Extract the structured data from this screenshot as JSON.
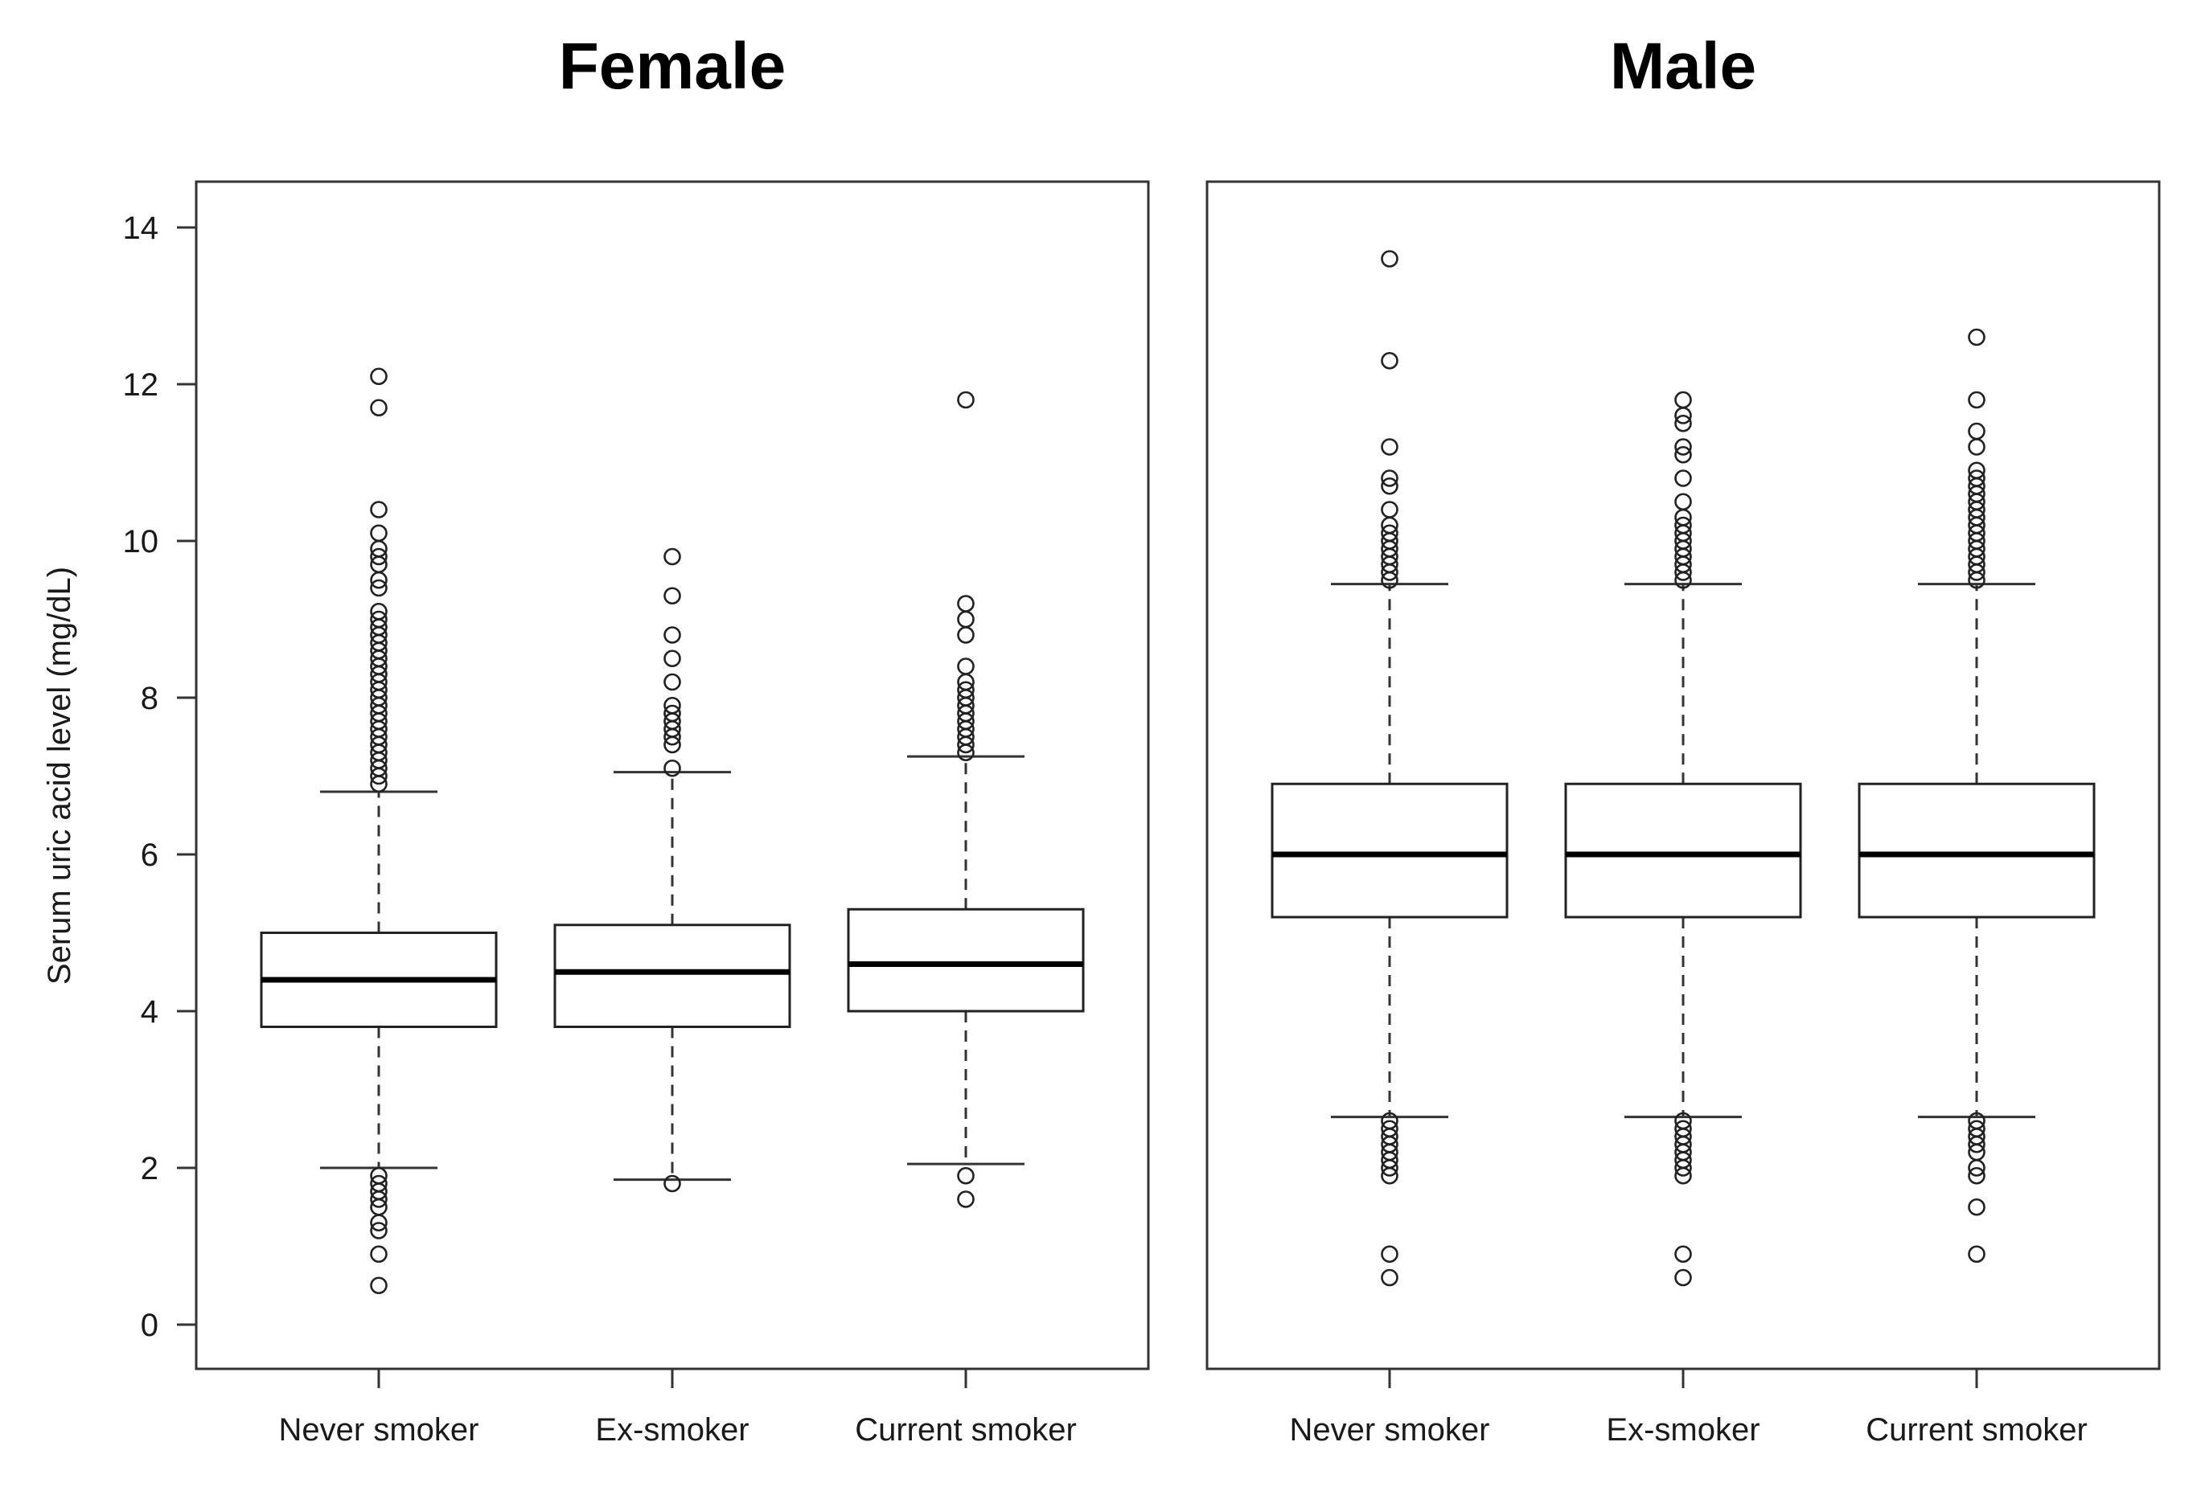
{
  "chart_data": [
    {
      "type": "boxplot",
      "title": "Female",
      "xlabel": "",
      "ylabel": "Serum uric acid level (mg/dL)",
      "ylim": [
        -0.55,
        14.6
      ],
      "yticks": [
        0,
        2,
        4,
        6,
        8,
        10,
        12,
        14
      ],
      "categories": [
        "Never smoker",
        "Ex-smoker",
        "Current smoker"
      ],
      "boxes": [
        {
          "category": "Never smoker",
          "whisker_low": 2.0,
          "q1": 3.8,
          "median": 4.4,
          "q3": 5.0,
          "whisker_high": 6.8,
          "outliers": [
            12.1,
            11.7,
            10.4,
            10.1,
            9.9,
            9.8,
            9.7,
            9.5,
            9.4,
            9.1,
            9.0,
            8.9,
            8.8,
            8.7,
            8.6,
            8.5,
            8.4,
            8.3,
            8.2,
            8.1,
            8.0,
            7.9,
            7.8,
            7.7,
            7.6,
            7.5,
            7.4,
            7.3,
            7.2,
            7.1,
            7.0,
            6.9,
            1.9,
            1.8,
            1.7,
            1.6,
            1.5,
            1.3,
            1.2,
            0.9,
            0.5
          ]
        },
        {
          "category": "Ex-smoker",
          "whisker_low": 1.85,
          "q1": 3.8,
          "median": 4.5,
          "q3": 5.1,
          "whisker_high": 7.05,
          "outliers": [
            9.8,
            9.3,
            8.8,
            8.5,
            8.2,
            7.9,
            7.8,
            7.7,
            7.6,
            7.5,
            7.4,
            7.1,
            1.8
          ]
        },
        {
          "category": "Current smoker",
          "whisker_low": 2.05,
          "q1": 4.0,
          "median": 4.6,
          "q3": 5.3,
          "whisker_high": 7.25,
          "outliers": [
            11.8,
            9.2,
            9.0,
            8.8,
            8.4,
            8.2,
            8.1,
            8.0,
            7.9,
            7.8,
            7.7,
            7.6,
            7.5,
            7.4,
            7.3,
            1.9,
            1.6
          ]
        }
      ]
    },
    {
      "type": "boxplot",
      "title": "Male",
      "xlabel": "",
      "ylabel": "",
      "ylim": [
        -0.55,
        14.6
      ],
      "categories": [
        "Never smoker",
        "Ex-smoker",
        "Current smoker"
      ],
      "boxes": [
        {
          "category": "Never smoker",
          "whisker_low": 2.65,
          "q1": 5.2,
          "median": 6.0,
          "q3": 6.9,
          "whisker_high": 9.45,
          "outliers": [
            13.6,
            12.3,
            11.2,
            10.8,
            10.7,
            10.4,
            10.2,
            10.1,
            10.0,
            9.9,
            9.8,
            9.7,
            9.6,
            9.5,
            2.6,
            2.5,
            2.4,
            2.3,
            2.2,
            2.1,
            2.0,
            1.9,
            0.9,
            0.6
          ]
        },
        {
          "category": "Ex-smoker",
          "whisker_low": 2.65,
          "q1": 5.2,
          "median": 6.0,
          "q3": 6.9,
          "whisker_high": 9.45,
          "outliers": [
            11.8,
            11.6,
            11.5,
            11.2,
            11.1,
            10.8,
            10.5,
            10.3,
            10.2,
            10.1,
            10.0,
            9.9,
            9.8,
            9.7,
            9.6,
            9.5,
            2.6,
            2.5,
            2.4,
            2.3,
            2.2,
            2.1,
            2.0,
            1.9,
            0.9,
            0.6
          ]
        },
        {
          "category": "Current smoker",
          "whisker_low": 2.65,
          "q1": 5.2,
          "median": 6.0,
          "q3": 6.9,
          "whisker_high": 9.45,
          "outliers": [
            12.6,
            11.8,
            11.4,
            11.2,
            10.9,
            10.8,
            10.7,
            10.6,
            10.5,
            10.4,
            10.3,
            10.2,
            10.1,
            10.0,
            9.9,
            9.8,
            9.7,
            9.6,
            9.5,
            2.6,
            2.5,
            2.4,
            2.3,
            2.2,
            2.0,
            1.9,
            1.5,
            0.9
          ]
        }
      ]
    }
  ],
  "colors": {
    "box_fill": "#ffffff",
    "stroke": "#222222",
    "median": "#000000"
  }
}
